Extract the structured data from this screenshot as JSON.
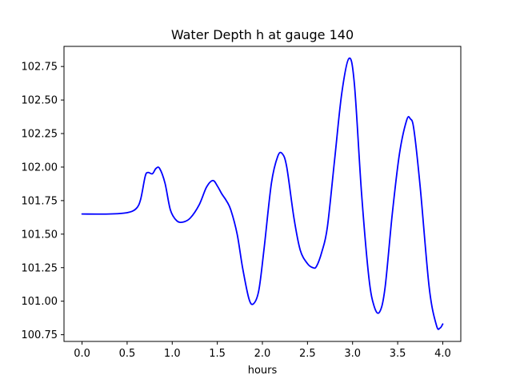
{
  "chart_data": {
    "type": "line",
    "title": "Water Depth h at gauge 140",
    "xlabel": "hours",
    "ylabel": "",
    "xlim": [
      -0.2,
      4.2
    ],
    "ylim": [
      100.7,
      102.9
    ],
    "grid": false,
    "legend": "none",
    "x_ticks": [
      0.0,
      0.5,
      1.0,
      1.5,
      2.0,
      2.5,
      3.0,
      3.5,
      4.0
    ],
    "x_tick_labels": [
      "0.0",
      "0.5",
      "1.0",
      "1.5",
      "2.0",
      "2.5",
      "3.0",
      "3.5",
      "4.0"
    ],
    "y_ticks": [
      100.75,
      101.0,
      101.25,
      101.5,
      101.75,
      102.0,
      102.25,
      102.5,
      102.75
    ],
    "y_tick_labels": [
      "100.75",
      "101.00",
      "101.25",
      "101.50",
      "101.75",
      "102.00",
      "102.25",
      "102.50",
      "102.75"
    ],
    "series": [
      {
        "color": "#0000ff",
        "x": [
          0.0,
          0.3,
          0.5,
          0.6,
          0.65,
          0.7,
          0.73,
          0.78,
          0.82,
          0.86,
          0.92,
          0.98,
          1.05,
          1.12,
          1.2,
          1.3,
          1.38,
          1.45,
          1.5,
          1.55,
          1.6,
          1.65,
          1.72,
          1.78,
          1.85,
          1.9,
          1.96,
          2.02,
          2.1,
          2.17,
          2.22,
          2.27,
          2.35,
          2.42,
          2.5,
          2.56,
          2.6,
          2.66,
          2.72,
          2.8,
          2.88,
          2.96,
          3.02,
          3.1,
          3.18,
          3.24,
          3.3,
          3.36,
          3.44,
          3.52,
          3.6,
          3.64,
          3.68,
          3.75,
          3.85,
          3.93,
          3.97,
          4.0
        ],
        "y": [
          101.65,
          101.65,
          101.66,
          101.69,
          101.76,
          101.93,
          101.96,
          101.95,
          101.99,
          101.99,
          101.88,
          101.68,
          101.6,
          101.59,
          101.62,
          101.72,
          101.85,
          101.9,
          101.86,
          101.8,
          101.75,
          101.68,
          101.5,
          101.25,
          101.02,
          100.98,
          101.08,
          101.4,
          101.88,
          102.08,
          102.1,
          102.0,
          101.62,
          101.38,
          101.28,
          101.25,
          101.26,
          101.37,
          101.55,
          102.05,
          102.55,
          102.81,
          102.62,
          101.8,
          101.18,
          100.96,
          100.92,
          101.1,
          101.65,
          102.1,
          102.35,
          102.36,
          102.28,
          101.85,
          101.1,
          100.82,
          100.8,
          100.83
        ]
      }
    ]
  }
}
